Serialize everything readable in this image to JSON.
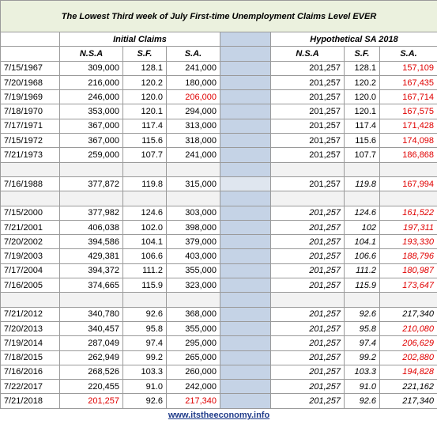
{
  "header": {
    "title": "The Lowest Third  week of July First-time Unemployment Claims   Level EVER"
  },
  "table": {
    "column_groups": [
      {
        "label": "Initial Claims",
        "columns": [
          "N.S.A",
          "S.F.",
          "S.A."
        ]
      },
      {
        "label": "Hypothetical SA 2018",
        "columns": [
          "N.S.A",
          "S.F.",
          "S.A."
        ]
      }
    ],
    "row_groups": [
      [
        [
          "7/15/1967",
          "309,000",
          "128.1",
          "241,000",
          "201,257",
          "128.1",
          "157,109"
        ],
        [
          "7/20/1968",
          "216,000",
          "120.2",
          "180,000",
          "201,257",
          "120.2",
          "167,435"
        ],
        [
          "7/19/1969",
          "246,000",
          "120.0",
          "206,000",
          "201,257",
          "120.0",
          "167,714"
        ],
        [
          "7/18/1970",
          "353,000",
          "120.1",
          "294,000",
          "201,257",
          "120.1",
          "167,575"
        ],
        [
          "7/17/1971",
          "367,000",
          "117.4",
          "313,000",
          "201,257",
          "117.4",
          "171,428"
        ],
        [
          "7/15/1972",
          "367,000",
          "115.6",
          "318,000",
          "201,257",
          "115.6",
          "174,098"
        ],
        [
          "7/21/1973",
          "259,000",
          "107.7",
          "241,000",
          "201,257",
          "107.7",
          "186,868"
        ]
      ],
      [
        [
          "7/16/1988",
          "377,872",
          "119.8",
          "315,000",
          "201,257",
          "119.8",
          "167,994"
        ]
      ],
      [
        [
          "7/15/2000",
          "377,982",
          "124.6",
          "303,000",
          "201,257",
          "124.6",
          "161,522"
        ],
        [
          "7/21/2001",
          "406,038",
          "102.0",
          "398,000",
          "201,257",
          "102",
          "197,311"
        ],
        [
          "7/20/2002",
          "394,586",
          "104.1",
          "379,000",
          "201,257",
          "104.1",
          "193,330"
        ],
        [
          "7/19/2003",
          "429,381",
          "106.6",
          "403,000",
          "201,257",
          "106.6",
          "188,796"
        ],
        [
          "7/17/2004",
          "394,372",
          "111.2",
          "355,000",
          "201,257",
          "111.2",
          "180,987"
        ],
        [
          "7/16/2005",
          "374,665",
          "115.9",
          "323,000",
          "201,257",
          "115.9",
          "173,647"
        ]
      ],
      [
        [
          "7/21/2012",
          "340,780",
          "92.6",
          "368,000",
          "201,257",
          "92.6",
          "217,340"
        ],
        [
          "7/20/2013",
          "340,457",
          "95.8",
          "355,000",
          "201,257",
          "95.8",
          "210,080"
        ],
        [
          "7/19/2014",
          "287,049",
          "97.4",
          "295,000",
          "201,257",
          "97.4",
          "206,629"
        ],
        [
          "7/18/2015",
          "262,949",
          "99.2",
          "265,000",
          "201,257",
          "99.2",
          "202,880"
        ],
        [
          "7/16/2016",
          "268,526",
          "103.3",
          "260,000",
          "201,257",
          "103.3",
          "194,828"
        ],
        [
          "7/22/2017",
          "220,455",
          "91.0",
          "242,000",
          "201,257",
          "91.0",
          "221,162"
        ],
        [
          "7/21/2018",
          "201,257",
          "92.6",
          "217,340",
          "201,257",
          "92.6",
          "217,340"
        ]
      ]
    ]
  },
  "footer": {
    "link": "www.itstheeconomy.info"
  }
}
